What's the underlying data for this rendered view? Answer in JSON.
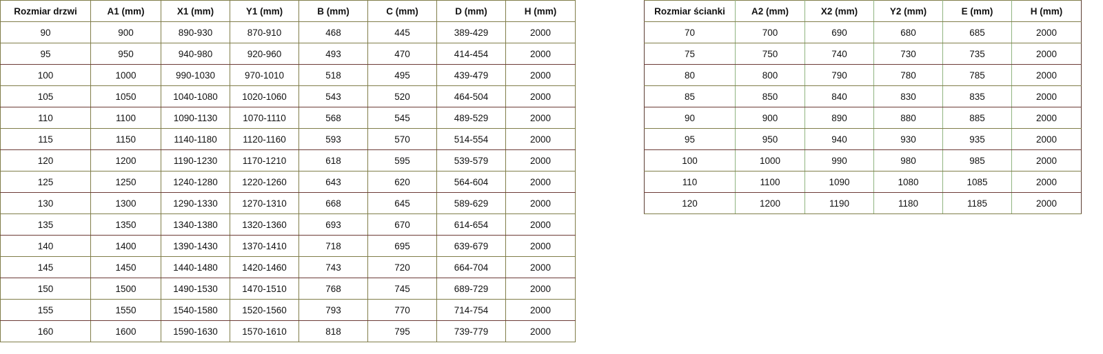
{
  "doors": {
    "headers": [
      "Rozmiar drzwi",
      "A1 (mm)",
      "X1 (mm)",
      "Y1 (mm)",
      "B (mm)",
      "C (mm)",
      "D (mm)",
      "H (mm)"
    ],
    "rows": [
      [
        "90",
        "900",
        "890-930",
        "870-910",
        "468",
        "445",
        "389-429",
        "2000"
      ],
      [
        "95",
        "950",
        "940-980",
        "920-960",
        "493",
        "470",
        "414-454",
        "2000"
      ],
      [
        "100",
        "1000",
        "990-1030",
        "970-1010",
        "518",
        "495",
        "439-479",
        "2000"
      ],
      [
        "105",
        "1050",
        "1040-1080",
        "1020-1060",
        "543",
        "520",
        "464-504",
        "2000"
      ],
      [
        "110",
        "1100",
        "1090-1130",
        "1070-1110",
        "568",
        "545",
        "489-529",
        "2000"
      ],
      [
        "115",
        "1150",
        "1140-1180",
        "1120-1160",
        "593",
        "570",
        "514-554",
        "2000"
      ],
      [
        "120",
        "1200",
        "1190-1230",
        "1170-1210",
        "618",
        "595",
        "539-579",
        "2000"
      ],
      [
        "125",
        "1250",
        "1240-1280",
        "1220-1260",
        "643",
        "620",
        "564-604",
        "2000"
      ],
      [
        "130",
        "1300",
        "1290-1330",
        "1270-1310",
        "668",
        "645",
        "589-629",
        "2000"
      ],
      [
        "135",
        "1350",
        "1340-1380",
        "1320-1360",
        "693",
        "670",
        "614-654",
        "2000"
      ],
      [
        "140",
        "1400",
        "1390-1430",
        "1370-1410",
        "718",
        "695",
        "639-679",
        "2000"
      ],
      [
        "145",
        "1450",
        "1440-1480",
        "1420-1460",
        "743",
        "720",
        "664-704",
        "2000"
      ],
      [
        "150",
        "1500",
        "1490-1530",
        "1470-1510",
        "768",
        "745",
        "689-729",
        "2000"
      ],
      [
        "155",
        "1550",
        "1540-1580",
        "1520-1560",
        "793",
        "770",
        "714-754",
        "2000"
      ],
      [
        "160",
        "1600",
        "1590-1630",
        "1570-1610",
        "818",
        "795",
        "739-779",
        "2000"
      ]
    ]
  },
  "walls": {
    "headers": [
      "Rozmiar ścianki",
      "A2 (mm)",
      "X2 (mm)",
      "Y2 (mm)",
      "E (mm)",
      "H (mm)"
    ],
    "rows": [
      [
        "70",
        "700",
        "690",
        "680",
        "685",
        "2000"
      ],
      [
        "75",
        "750",
        "740",
        "730",
        "735",
        "2000"
      ],
      [
        "80",
        "800",
        "790",
        "780",
        "785",
        "2000"
      ],
      [
        "85",
        "850",
        "840",
        "830",
        "835",
        "2000"
      ],
      [
        "90",
        "900",
        "890",
        "880",
        "885",
        "2000"
      ],
      [
        "95",
        "950",
        "940",
        "930",
        "935",
        "2000"
      ],
      [
        "100",
        "1000",
        "990",
        "980",
        "985",
        "2000"
      ],
      [
        "110",
        "1100",
        "1090",
        "1080",
        "1085",
        "2000"
      ],
      [
        "120",
        "1200",
        "1190",
        "1180",
        "1185",
        "2000"
      ]
    ]
  }
}
